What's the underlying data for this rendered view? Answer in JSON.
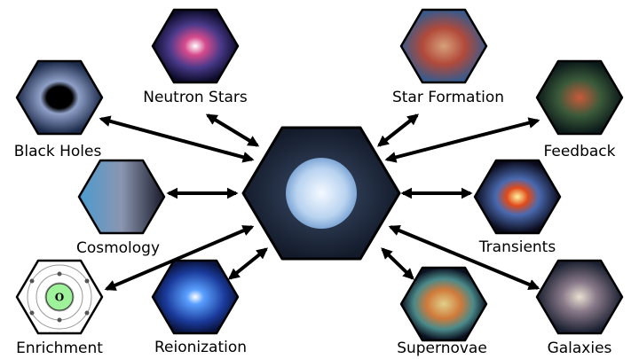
{
  "nodes": [
    {
      "label": "Neutron Stars"
    },
    {
      "label": "Star Formation"
    },
    {
      "label": "Black Holes"
    },
    {
      "label": "Feedback"
    },
    {
      "label": "Cosmology"
    },
    {
      "label": "Transients"
    },
    {
      "label": "Enrichment",
      "symbol": "O"
    },
    {
      "label": "Reionization"
    },
    {
      "label": "Supernovae"
    },
    {
      "label": "Galaxies"
    }
  ]
}
